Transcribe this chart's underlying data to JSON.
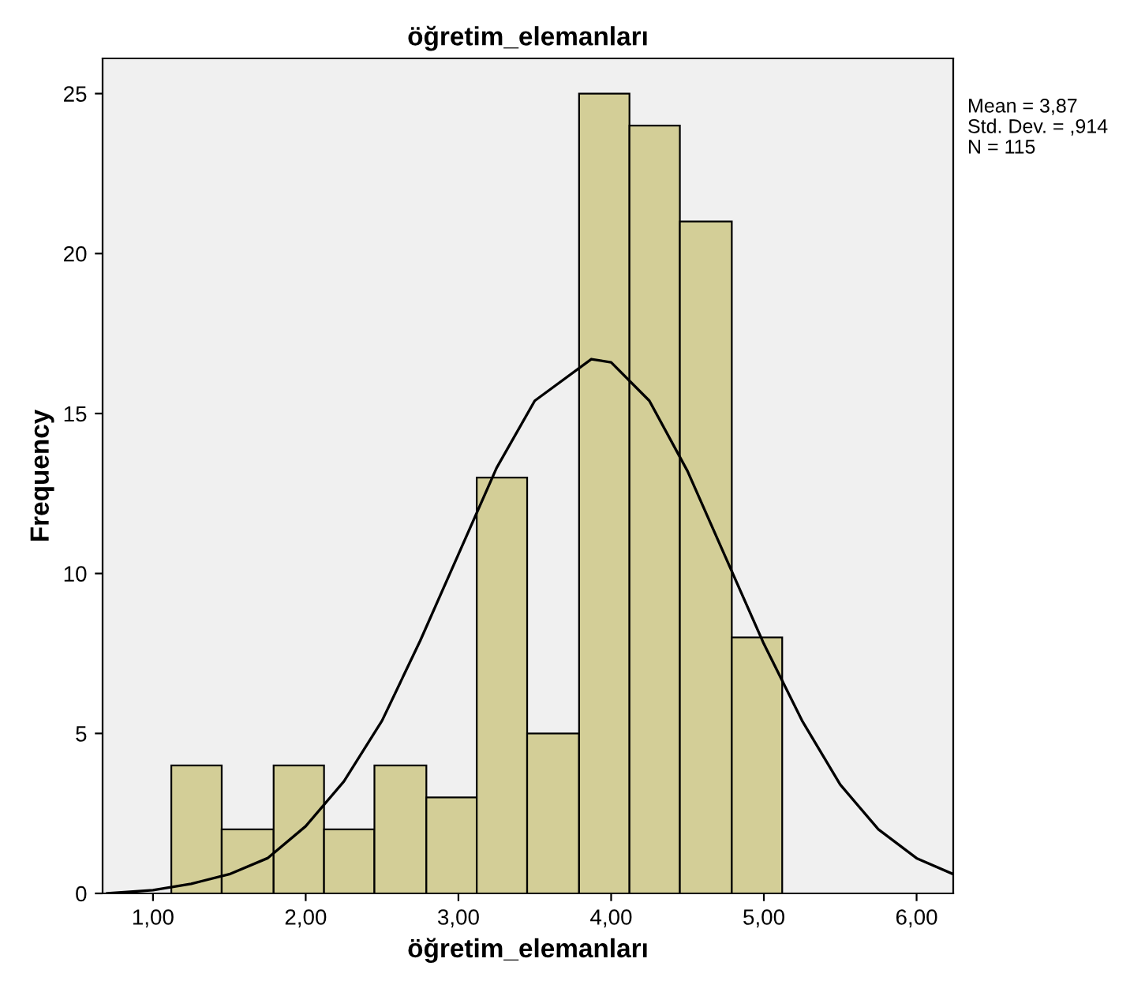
{
  "chart_data": {
    "type": "histogram",
    "title": "öğretim_elemanları",
    "xlabel": "öğretim_elemanları",
    "ylabel": "Frequency",
    "bins": [
      1.12,
      1.45,
      1.79,
      2.12,
      2.45,
      2.79,
      3.12,
      3.45,
      3.79,
      4.12,
      4.45,
      4.79,
      5.12
    ],
    "values": [
      4,
      2,
      4,
      2,
      4,
      3,
      13,
      5,
      25,
      24,
      21,
      8
    ],
    "color": "#d3ce97",
    "series": [
      {
        "type": "line",
        "color": "#000000",
        "x": [
          0.7,
          1.0,
          1.25,
          1.5,
          1.75,
          2.0,
          2.25,
          2.5,
          2.75,
          3.0,
          3.25,
          3.5,
          3.87,
          4.0,
          4.25,
          4.5,
          4.75,
          5.0,
          5.25,
          5.5,
          5.75,
          6.0,
          6.24
        ],
        "values": [
          0.0,
          0.1,
          0.3,
          0.6,
          1.1,
          2.1,
          3.5,
          5.4,
          7.9,
          10.6,
          13.3,
          15.4,
          16.7,
          16.6,
          15.4,
          13.2,
          10.5,
          7.8,
          5.4,
          3.4,
          2.0,
          1.1,
          0.6
        ]
      }
    ],
    "xlim": [
      0.67,
      6.24
    ],
    "ylim": [
      0,
      26.1
    ],
    "xticks": [
      {
        "value": 1,
        "label": "1,00"
      },
      {
        "value": 2,
        "label": "2,00"
      },
      {
        "value": 3,
        "label": "3,00"
      },
      {
        "value": 4,
        "label": "4,00"
      },
      {
        "value": 5,
        "label": "5,00"
      },
      {
        "value": 6,
        "label": "6,00"
      }
    ],
    "yticks": [
      0,
      5,
      10,
      15,
      20,
      25
    ],
    "annotations": [
      "Mean = 3,87",
      "Std. Dev. = ,914",
      "N = 115"
    ]
  }
}
